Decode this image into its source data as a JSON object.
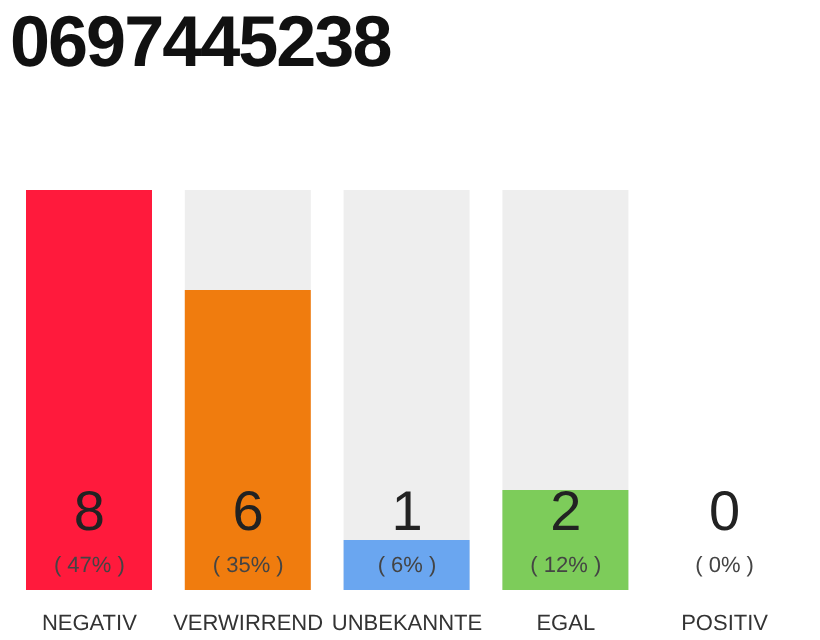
{
  "chart_data": {
    "type": "bar",
    "title": "0697445238",
    "categories": [
      "NEGATIV",
      "VERWIRREND",
      "UNBEKANNTE",
      "EGAL",
      "POSITIV"
    ],
    "values": [
      8,
      6,
      1,
      2,
      0
    ],
    "colors": [
      "#ff1a3c",
      "#f07c0e",
      "#6aa6f0",
      "#7dcc5a",
      "#9e9e9e"
    ],
    "data_labels": true,
    "annotations": [
      "( 47% )",
      "( 35% )",
      "( 6% )",
      "( 12% )",
      "( 0% )"
    ]
  }
}
